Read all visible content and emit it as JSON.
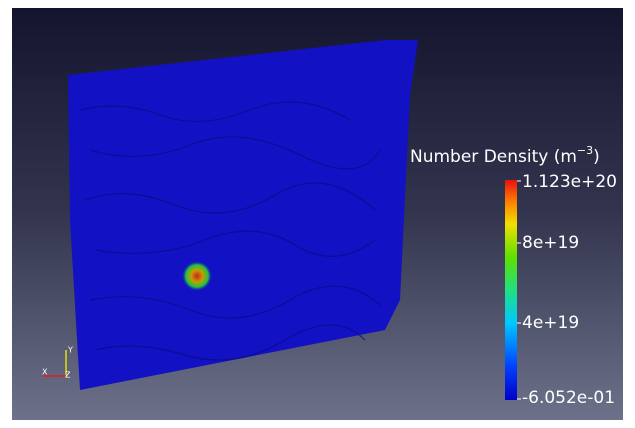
{
  "colorbar": {
    "title": "Number Density (m",
    "title_exponent": "−3",
    "title_suffix": ")",
    "labels": [
      "1.123e+20",
      "8e+19",
      "4e+19",
      "-6.052e-01"
    ]
  },
  "axes": {
    "x": "X",
    "y": "Y",
    "z": "Z"
  }
}
